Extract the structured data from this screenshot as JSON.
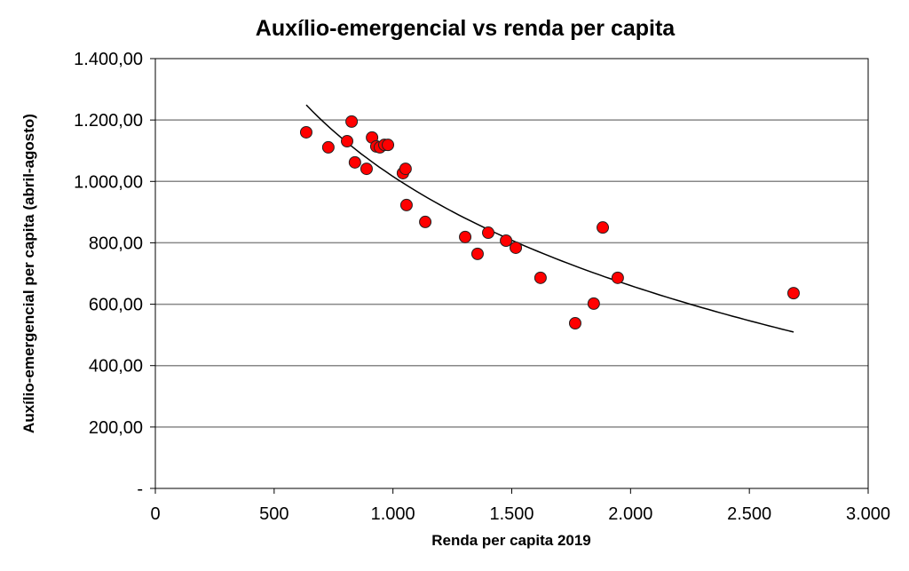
{
  "chart_data": {
    "type": "scatter",
    "title": "Auxílio-emergencial vs renda per capita",
    "xlabel": "Renda per capita 2019",
    "ylabel": "Auxílio-emergencial  per capita (abril-agosto)",
    "xlim": [
      0,
      3000
    ],
    "ylim": [
      0,
      1400
    ],
    "xticks": [
      0,
      500,
      1000,
      1500,
      2000,
      2500,
      3000
    ],
    "xtick_labels": [
      "0",
      "500",
      "1.000",
      "1.500",
      "2.000",
      "2.500",
      "3.000"
    ],
    "yticks": [
      0,
      200,
      400,
      600,
      800,
      1000,
      1200,
      1400
    ],
    "ytick_labels": [
      "-",
      "200,00",
      "400,00",
      "600,00",
      "800,00",
      "1.000,00",
      "1.200,00",
      "1.400,00"
    ],
    "grid": "horizontal",
    "marker_color": "#ff0000",
    "points": [
      [
        635,
        1160
      ],
      [
        728,
        1111
      ],
      [
        807,
        1131
      ],
      [
        826,
        1195
      ],
      [
        840,
        1062
      ],
      [
        889,
        1041
      ],
      [
        912,
        1143
      ],
      [
        930,
        1114
      ],
      [
        945,
        1111
      ],
      [
        964,
        1119
      ],
      [
        979,
        1119
      ],
      [
        1042,
        1027
      ],
      [
        1053,
        1041
      ],
      [
        1057,
        923
      ],
      [
        1136,
        868
      ],
      [
        1304,
        819
      ],
      [
        1356,
        764
      ],
      [
        1401,
        833
      ],
      [
        1476,
        807
      ],
      [
        1517,
        784
      ],
      [
        1621,
        686
      ],
      [
        1767,
        538
      ],
      [
        1845,
        602
      ],
      [
        1883,
        850
      ],
      [
        1946,
        686
      ],
      [
        2686,
        636
      ]
    ],
    "trendline": {
      "type": "logarithmic",
      "a": 4560,
      "b": -513,
      "x_range": [
        635,
        2686
      ]
    }
  }
}
